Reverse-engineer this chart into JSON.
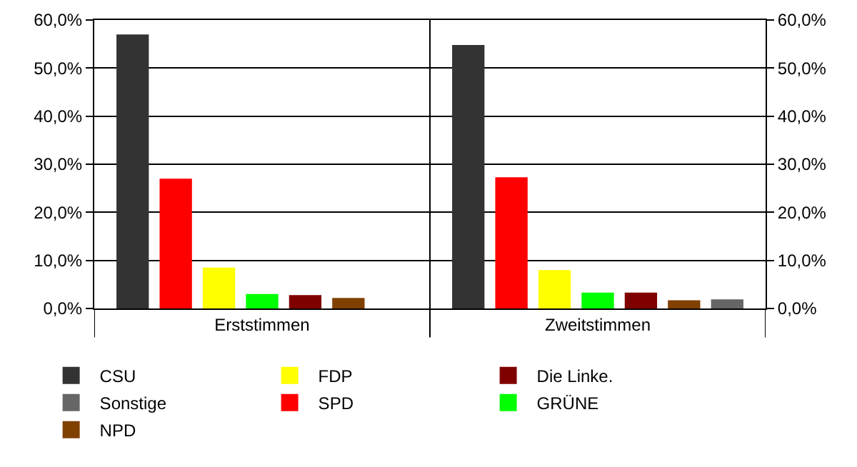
{
  "chart_data": {
    "type": "bar",
    "categories": [
      "Erststimmen",
      "Zweitstimmen"
    ],
    "series": [
      {
        "name": "CSU",
        "color": "#333333",
        "values": [
          57.0,
          54.8
        ]
      },
      {
        "name": "SPD",
        "color": "#ff0000",
        "values": [
          27.0,
          27.3
        ]
      },
      {
        "name": "FDP",
        "color": "#ffff00",
        "values": [
          8.5,
          8.0
        ]
      },
      {
        "name": "GRÜNE",
        "color": "#00ff00",
        "values": [
          3.0,
          3.3
        ]
      },
      {
        "name": "Die Linke.",
        "color": "#800000",
        "values": [
          2.8,
          3.3
        ]
      },
      {
        "name": "NPD",
        "color": "#804000",
        "values": [
          2.2,
          1.7
        ]
      },
      {
        "name": "Sonstige",
        "color": "#666666",
        "values": [
          null,
          1.9
        ]
      }
    ],
    "ylim": [
      0,
      60
    ],
    "yticks": [
      {
        "value": 0,
        "label": "0,0%"
      },
      {
        "value": 10,
        "label": "10,0%"
      },
      {
        "value": 20,
        "label": "20,0%"
      },
      {
        "value": 30,
        "label": "30,0%"
      },
      {
        "value": 40,
        "label": "40,0%"
      },
      {
        "value": 50,
        "label": "50,0%"
      },
      {
        "value": 60,
        "label": "60,0%"
      }
    ],
    "y2lim": [
      0,
      60
    ],
    "y2ticks": [
      {
        "value": 0,
        "label": "0,0%"
      },
      {
        "value": 10,
        "label": "10,0%"
      },
      {
        "value": 20,
        "label": "20,0%"
      },
      {
        "value": 30,
        "label": "30,0%"
      },
      {
        "value": 40,
        "label": "40,0%"
      },
      {
        "value": 50,
        "label": "50,0%"
      },
      {
        "value": 60,
        "label": "60,0%"
      }
    ],
    "grid": "y",
    "legend": "bottom"
  }
}
